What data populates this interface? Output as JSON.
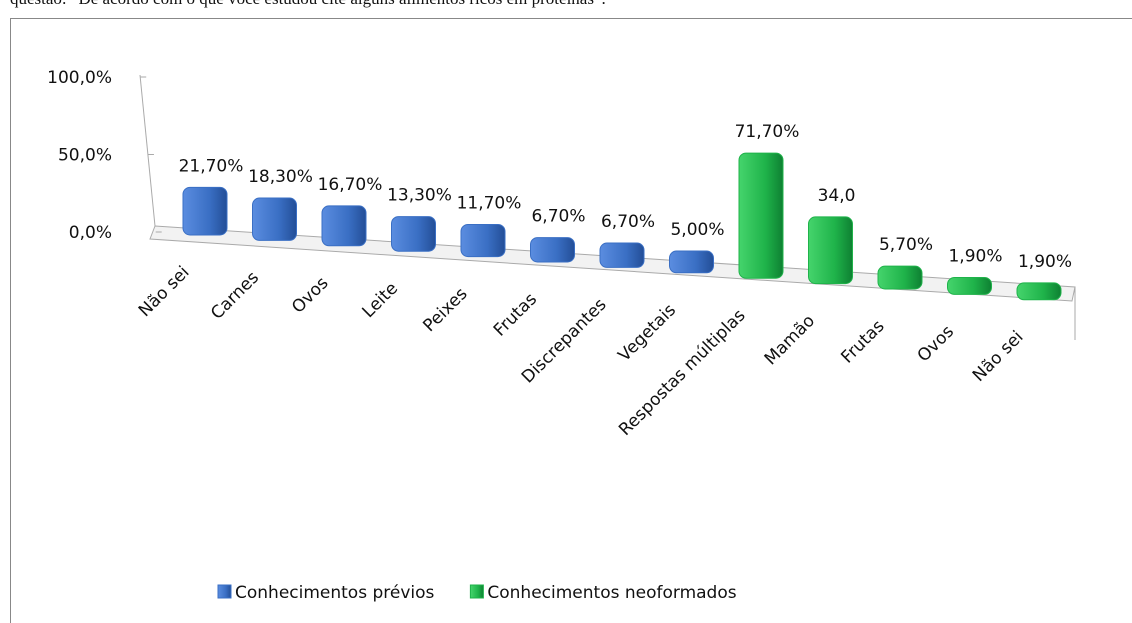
{
  "caption": "questão: “De acordo com o que você estudou cite alguns alimentos ricos em proteínas”.",
  "chart_data": {
    "type": "bar3d",
    "categories": [
      "Não sei",
      "Carnes",
      "Ovos",
      "Leite",
      "Peixes",
      "Frutas",
      "Discrepantes",
      "Vegetais",
      "Respostas múltiplas",
      "Mamão",
      "Frutas",
      "Ovos",
      "Não sei"
    ],
    "series": [
      {
        "name": "Conhecimentos prévios",
        "color": "#3a6fc4",
        "values": [
          21.7,
          18.3,
          16.7,
          13.3,
          11.7,
          6.7,
          6.7,
          5.0,
          null,
          null,
          null,
          null,
          null
        ],
        "value_labels": [
          "21,70%",
          "18,30%",
          "16,70%",
          "13,30%",
          "11,70%",
          "6,70%",
          "6,70%",
          "5,00%",
          null,
          null,
          null,
          null,
          null
        ]
      },
      {
        "name": "Conhecimentos neoformados",
        "color": "#1fb34a",
        "values": [
          null,
          null,
          null,
          null,
          null,
          null,
          null,
          null,
          71.7,
          34.0,
          5.7,
          1.9,
          1.9
        ],
        "value_labels": [
          null,
          null,
          null,
          null,
          null,
          null,
          null,
          null,
          "71,70%",
          "34,0",
          "5,70%",
          "1,90%",
          "1,90%"
        ]
      }
    ],
    "ylim": [
      0,
      100
    ],
    "yticks": [
      {
        "value": 0,
        "label": "0,0%"
      },
      {
        "value": 50,
        "label": "50,0%"
      },
      {
        "value": 100,
        "label": "100,0%"
      }
    ],
    "legend": "bottom"
  }
}
